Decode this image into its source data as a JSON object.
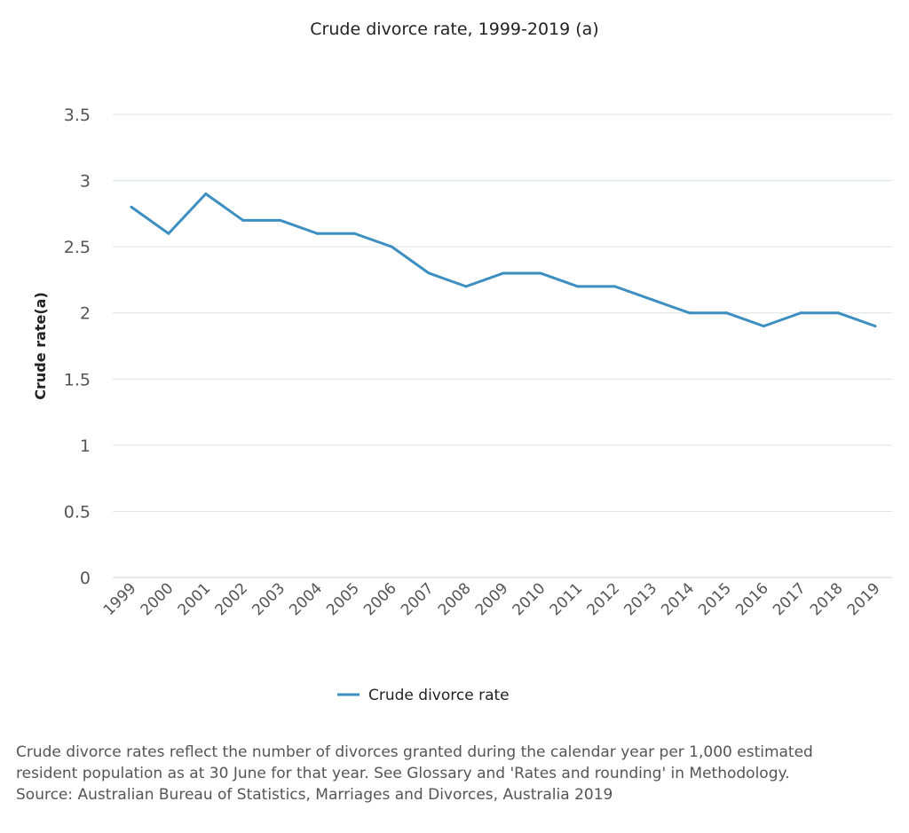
{
  "chart_data": {
    "type": "line",
    "title": "Crude divorce rate, 1999-2019 (a)",
    "xlabel": "",
    "ylabel": "Crude rate(a)",
    "ylim": [
      0,
      3.5
    ],
    "yticks": [
      "0",
      "0.5",
      "1",
      "1.5",
      "2",
      "2.5",
      "3",
      "3.5"
    ],
    "grid": true,
    "legend_position": "bottom",
    "categories": [
      "1999",
      "2000",
      "2001",
      "2002",
      "2003",
      "2004",
      "2005",
      "2006",
      "2007",
      "2008",
      "2009",
      "2010",
      "2011",
      "2012",
      "2013",
      "2014",
      "2015",
      "2016",
      "2017",
      "2018",
      "2019"
    ],
    "series": [
      {
        "name": "Crude divorce rate",
        "color": "#3d8fc1",
        "values": [
          2.8,
          2.6,
          2.9,
          2.7,
          2.7,
          2.6,
          2.6,
          2.5,
          2.3,
          2.2,
          2.3,
          2.3,
          2.2,
          2.2,
          2.1,
          2.0,
          2.0,
          1.9,
          2.0,
          2.0,
          1.9
        ]
      }
    ]
  },
  "notes": [
    "Crude divorce rates reflect the number of divorces granted during the calendar year per 1,000 estimated",
    "resident population as at 30 June for that year. See Glossary and 'Rates and rounding' in Methodology.",
    "Source: Australian Bureau of Statistics, Marriages and Divorces, Australia 2019"
  ]
}
